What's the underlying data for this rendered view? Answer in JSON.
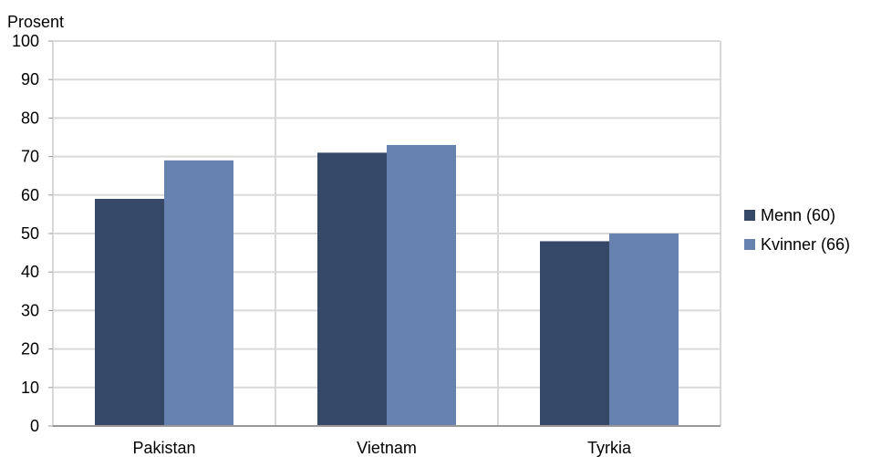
{
  "chart_data": {
    "type": "bar",
    "ylabel": "Prosent",
    "categories": [
      "Pakistan",
      "Vietnam",
      "Tyrkia"
    ],
    "series": [
      {
        "name": "Menn (60)",
        "color": "#354868",
        "values": [
          59,
          71,
          48
        ]
      },
      {
        "name": "Kvinner (66)",
        "color": "#6882b0",
        "values": [
          69,
          73,
          50
        ]
      }
    ],
    "ylim": [
      0,
      100
    ],
    "yticks": [
      0,
      10,
      20,
      30,
      40,
      50,
      60,
      70,
      80,
      90,
      100
    ],
    "grid": true,
    "legend_position": "right"
  }
}
